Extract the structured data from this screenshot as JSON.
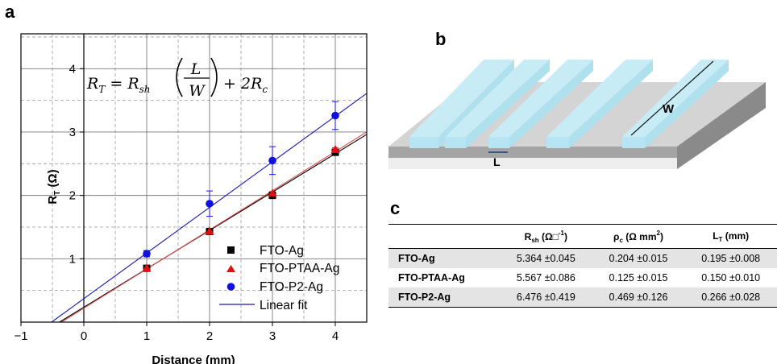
{
  "panels": {
    "a": "a",
    "b": "b",
    "c": "c"
  },
  "chart_data": {
    "type": "scatter",
    "xlabel": "Distance (mm)",
    "ylabel": "R",
    "ylabel_sub": "T",
    "ylabel_unit": " (Ω)",
    "xlim": [
      -1,
      4.5
    ],
    "ylim": [
      0,
      4.55
    ],
    "xticks": [
      -1,
      0,
      1,
      2,
      3,
      4
    ],
    "yticks": [
      1,
      2,
      3,
      4
    ],
    "equation": "R_T = R_sh (L / W) + 2R_c",
    "equation_parts": {
      "lhs": "R",
      "lhs_sub": "T",
      "eq": " = R",
      "rsh_sub": "sh",
      "L": "L",
      "W": "W",
      "tail": " + 2R",
      "rc_sub": "c"
    },
    "series": [
      {
        "name": "FTO-Ag",
        "marker": "square",
        "color": "#000000",
        "x": [
          1,
          2,
          3,
          4
        ],
        "y": [
          0.85,
          1.43,
          2.0,
          2.68
        ],
        "err": [
          0.03,
          0.03,
          0.03,
          0.03
        ],
        "fit": {
          "slope": 0.606,
          "intercept": 0.235,
          "color": "#000000"
        }
      },
      {
        "name": "FTO-PTAA-Ag",
        "marker": "triangle",
        "color": "#e01010",
        "x": [
          1,
          2,
          3,
          4
        ],
        "y": [
          0.85,
          1.43,
          2.03,
          2.72
        ],
        "err": [
          0.03,
          0.03,
          0.03,
          0.03
        ],
        "fit": {
          "slope": 0.618,
          "intercept": 0.22,
          "color": "#e05050"
        }
      },
      {
        "name": "FTO-P2-Ag",
        "marker": "circle",
        "color": "#1010e0",
        "x": [
          1,
          2,
          3,
          4
        ],
        "y": [
          1.08,
          1.87,
          2.55,
          3.26
        ],
        "err": [
          0.05,
          0.2,
          0.22,
          0.22
        ],
        "fit": {
          "slope": 0.72,
          "intercept": 0.37,
          "color": "#1a1aa8"
        }
      }
    ],
    "legend": [
      {
        "label": "FTO-Ag",
        "marker": "square",
        "color": "#000000"
      },
      {
        "label": "FTO-PTAA-Ag",
        "marker": "triangle",
        "color": "#e01010"
      },
      {
        "label": "FTO-P2-Ag",
        "marker": "circle",
        "color": "#1010e0"
      },
      {
        "label": "Linear fit",
        "marker": "line",
        "color": "#1a1aa8"
      }
    ]
  },
  "diagram": {
    "label_W": "W",
    "label_L": "L"
  },
  "table": {
    "headers": [
      {
        "main": "R",
        "sub": "sh",
        "unit": " (Ω□",
        "sup": "-1",
        "close": ")"
      },
      {
        "main": "ρ",
        "sub": "c",
        "unit": " (Ω mm",
        "sup": "2",
        "close": ")"
      },
      {
        "main": "L",
        "sub": "T",
        "unit": " (mm)",
        "sup": "",
        "close": ""
      }
    ],
    "rows": [
      {
        "label": "FTO-Ag",
        "values": [
          "5.364 ±0.045",
          "0.204 ±0.015",
          "0.195 ±0.008"
        ]
      },
      {
        "label": "FTO-PTAA-Ag",
        "values": [
          "5.567 ±0.086",
          "0.125 ±0.015",
          "0.150 ±0.010"
        ]
      },
      {
        "label": "FTO-P2-Ag",
        "values": [
          "6.476 ±0.419",
          "0.469 ±0.126",
          "0.266 ±0.028"
        ]
      }
    ]
  }
}
